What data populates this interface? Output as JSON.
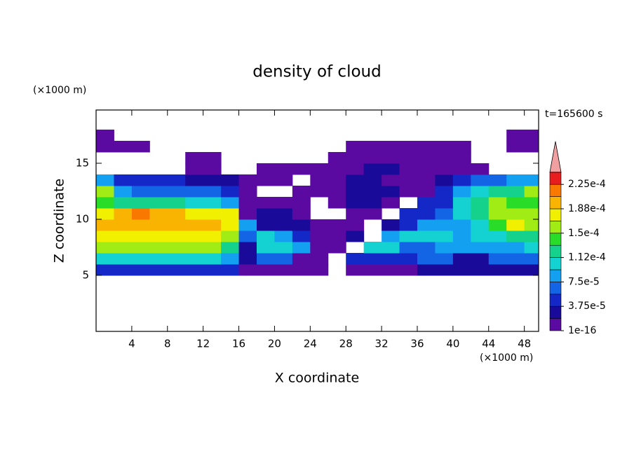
{
  "chart_data": {
    "type": "contour",
    "title": "density of cloud",
    "x_label": "X coordinate",
    "y_label": "Z coordinate",
    "x_unit": "(×1000 m)",
    "y_unit": "(×1000 m)",
    "annotation": "t=165600 s",
    "xlim": [
      0,
      49.6
    ],
    "ylim": [
      0,
      19.75
    ],
    "xticks": [
      4,
      8,
      12,
      16,
      20,
      24,
      28,
      32,
      36,
      40,
      44,
      48
    ],
    "yticks": [
      5,
      10,
      15
    ],
    "field": {
      "x_edges": [
        0,
        2,
        4,
        6,
        8,
        10,
        12,
        14,
        16,
        18,
        20,
        22,
        24,
        26,
        28,
        30,
        32,
        34,
        36,
        38,
        40,
        42,
        44,
        46,
        48,
        50
      ],
      "z_edges": [
        5,
        6,
        7,
        8,
        9,
        10,
        11,
        12,
        13,
        14,
        15,
        16,
        17,
        18
      ],
      "values": [
        [
          5e-05,
          5e-05,
          5e-05,
          5e-05,
          5e-05,
          5e-05,
          5e-05,
          4e-05,
          1e-06,
          1e-06,
          1e-06,
          1e-06,
          1e-06,
          0,
          1e-06,
          1e-06,
          1e-06,
          1e-06,
          3e-05,
          3e-05,
          3e-05,
          3e-05,
          3e-05,
          3e-05,
          3e-05
        ],
        [
          0.00011,
          0.00011,
          0.00011,
          0.00011,
          0.00011,
          0.00011,
          0.00011,
          9e-05,
          3e-05,
          6e-05,
          6e-05,
          1e-06,
          1e-06,
          0,
          5e-05,
          4e-05,
          4e-05,
          4e-05,
          7e-05,
          7e-05,
          3e-05,
          3e-05,
          7e-05,
          7e-05,
          7e-05
        ],
        [
          0.00015,
          0.00015,
          0.00016,
          0.00015,
          0.00015,
          0.00015,
          0.00015,
          0.00013,
          3e-05,
          0.0001,
          0.0001,
          8e-05,
          1e-06,
          1e-06,
          0,
          0.0001,
          0.0001,
          6e-05,
          6e-05,
          9e-05,
          9e-05,
          9e-05,
          9e-05,
          9e-05,
          0.0001
        ],
        [
          0.00017,
          0.00018,
          0.00018,
          0.00017,
          0.00017,
          0.00017,
          0.00017,
          0.00015,
          6e-05,
          0.0001,
          8e-05,
          5e-05,
          1e-06,
          1e-06,
          3e-05,
          0,
          8e-05,
          0.0001,
          0.0001,
          0.0001,
          9e-05,
          0.0001,
          0.00011,
          0.00013,
          0.00013
        ],
        [
          0.00019,
          0.0002,
          0.0002,
          0.00019,
          0.00019,
          0.00019,
          0.00019,
          0.00018,
          8e-05,
          3e-05,
          3e-05,
          3e-05,
          1e-06,
          1e-06,
          1e-06,
          0,
          3e-05,
          5e-05,
          9e-05,
          9e-05,
          9e-05,
          0.00011,
          0.00014,
          0.00017,
          0.00016
        ],
        [
          0.00018,
          0.0002,
          0.00021,
          0.0002,
          0.00019,
          0.00018,
          0.00018,
          0.00017,
          1e-06,
          3e-05,
          3e-05,
          1e-06,
          0,
          0,
          1e-06,
          1e-06,
          0,
          4e-05,
          5e-05,
          6e-05,
          0.0001,
          0.00013,
          0.00016,
          0.00015,
          0.00015
        ],
        [
          0.00014,
          0.00013,
          0.00012,
          0.00012,
          0.00012,
          0.00011,
          0.00011,
          9e-05,
          1e-06,
          1e-06,
          1e-06,
          1e-06,
          0,
          1e-06,
          3e-05,
          3e-05,
          1e-06,
          0,
          4e-05,
          4e-05,
          0.00011,
          0.00013,
          0.00015,
          0.00014,
          0.00014
        ],
        [
          0.00015,
          8e-05,
          7e-05,
          7e-05,
          6e-05,
          6e-05,
          6e-05,
          5e-05,
          1e-06,
          0,
          0,
          1e-06,
          1e-06,
          1e-06,
          3e-05,
          3e-05,
          3e-05,
          1e-06,
          1e-06,
          4e-05,
          8e-05,
          0.0001,
          0.00013,
          0.00013,
          0.00015
        ],
        [
          8e-05,
          5e-05,
          4e-05,
          4e-05,
          4e-05,
          3e-05,
          3e-05,
          3e-05,
          1e-06,
          1e-06,
          1e-06,
          0,
          1e-06,
          1e-06,
          3e-05,
          3e-05,
          1e-06,
          1e-06,
          1e-06,
          3e-05,
          5e-05,
          6e-05,
          7e-05,
          8e-05,
          9e-05
        ],
        [
          0,
          0,
          0,
          0,
          0,
          1e-06,
          1e-06,
          0,
          0,
          1e-06,
          1e-06,
          1e-06,
          1e-06,
          1e-06,
          1e-06,
          3e-05,
          3e-05,
          1e-06,
          1e-06,
          1e-06,
          1e-06,
          1e-06,
          0,
          0,
          0
        ],
        [
          0,
          0,
          0,
          0,
          0,
          1e-06,
          1e-06,
          0,
          0,
          0,
          0,
          0,
          0,
          1e-06,
          1e-06,
          1e-06,
          1e-06,
          1e-06,
          1e-06,
          1e-06,
          1e-06,
          0,
          0,
          0,
          0
        ],
        [
          1e-06,
          1e-06,
          1e-06,
          0,
          0,
          0,
          0,
          0,
          0,
          0,
          0,
          0,
          0,
          0,
          1e-06,
          1e-06,
          1e-06,
          1e-06,
          1e-06,
          1e-06,
          1e-06,
          0,
          0,
          1e-06,
          1e-06
        ],
        [
          1e-06,
          0,
          0,
          0,
          0,
          0,
          0,
          0,
          0,
          0,
          0,
          0,
          0,
          0,
          0,
          0,
          0,
          0,
          0,
          0,
          0,
          0,
          0,
          1e-06,
          1e-06
        ]
      ]
    },
    "colorbar": {
      "levels": [
        1e-16,
        1.875e-05,
        3.75e-05,
        5.625e-05,
        7.5e-05,
        9.375e-05,
        0.0001125,
        0.00013125,
        0.00015,
        0.00016875,
        0.0001875,
        0.00020625,
        0.000225,
        0.00024375
      ],
      "colors": [
        "#5a0aa0",
        "#1a0a9a",
        "#1428c8",
        "#1464e6",
        "#14a0f0",
        "#14d2d2",
        "#14d28c",
        "#28dc28",
        "#a0ec14",
        "#f0f000",
        "#f8b400",
        "#f87800",
        "#e81e1e"
      ],
      "extend_color": "#f0a0a0",
      "ticks": [
        {
          "value": 1e-16,
          "label": "1e-16"
        },
        {
          "value": 3.75e-05,
          "label": "3.75e-5"
        },
        {
          "value": 7.5e-05,
          "label": "7.5e-5"
        },
        {
          "value": 0.0001125,
          "label": "1.12e-4"
        },
        {
          "value": 0.00015,
          "label": "1.5e-4"
        },
        {
          "value": 0.0001875,
          "label": "1.88e-4"
        },
        {
          "value": 0.000225,
          "label": "2.25e-4"
        }
      ]
    }
  }
}
